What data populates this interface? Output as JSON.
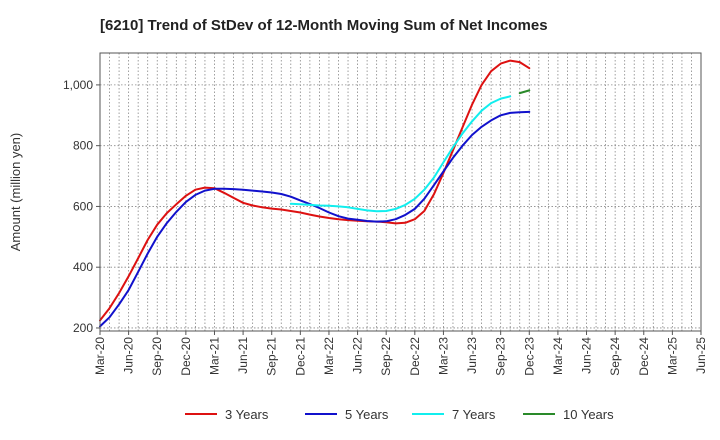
{
  "chart_data": {
    "type": "line",
    "title": "[6210]  Trend of StDev of 12-Month Moving Sum of Net Incomes",
    "ylabel": "Amount (million yen)",
    "xlabel": "",
    "ylim": [
      190,
      1105
    ],
    "yticks": [
      200,
      400,
      600,
      800,
      "1,000"
    ],
    "ytick_values": [
      200,
      400,
      600,
      800,
      1000
    ],
    "x_categories": [
      "Mar-20",
      "Jun-20",
      "Sep-20",
      "Dec-20",
      "Mar-21",
      "Jun-21",
      "Sep-21",
      "Dec-21",
      "Mar-22",
      "Jun-22",
      "Sep-22",
      "Dec-22",
      "Mar-23",
      "Jun-23",
      "Sep-23",
      "Dec-23",
      "Mar-24",
      "Jun-24",
      "Sep-24",
      "Dec-24",
      "Mar-25",
      "Jun-25"
    ],
    "grid": true,
    "legend_position": "bottom",
    "series": [
      {
        "name": "3 Years",
        "color": "#dd1111",
        "points": [
          [
            0,
            225
          ],
          [
            1,
            265
          ],
          [
            2,
            315
          ],
          [
            3,
            370
          ],
          [
            4,
            430
          ],
          [
            5,
            490
          ],
          [
            6,
            540
          ],
          [
            7,
            578
          ],
          [
            8,
            607
          ],
          [
            9,
            635
          ],
          [
            10,
            655
          ],
          [
            11,
            662
          ],
          [
            12,
            660
          ],
          [
            13,
            645
          ],
          [
            14,
            628
          ],
          [
            15,
            612
          ],
          [
            16,
            603
          ],
          [
            17,
            597
          ],
          [
            18,
            593
          ],
          [
            19,
            590
          ],
          [
            20,
            585
          ],
          [
            21,
            580
          ],
          [
            22,
            573
          ],
          [
            23,
            567
          ],
          [
            24,
            562
          ],
          [
            25,
            558
          ],
          [
            26,
            555
          ],
          [
            27,
            553
          ],
          [
            28,
            551
          ],
          [
            29,
            550
          ],
          [
            30,
            548
          ],
          [
            31,
            544
          ],
          [
            32,
            546
          ],
          [
            33,
            558
          ],
          [
            34,
            585
          ],
          [
            35,
            640
          ],
          [
            36,
            710
          ],
          [
            37,
            785
          ],
          [
            38,
            860
          ],
          [
            39,
            935
          ],
          [
            40,
            1000
          ],
          [
            41,
            1045
          ],
          [
            42,
            1070
          ],
          [
            43,
            1080
          ],
          [
            44,
            1075
          ],
          [
            45,
            1055
          ]
        ]
      },
      {
        "name": "5 Years",
        "color": "#1111cc",
        "points": [
          [
            0,
            205
          ],
          [
            1,
            235
          ],
          [
            2,
            278
          ],
          [
            3,
            325
          ],
          [
            4,
            385
          ],
          [
            5,
            445
          ],
          [
            6,
            500
          ],
          [
            7,
            545
          ],
          [
            8,
            582
          ],
          [
            9,
            615
          ],
          [
            10,
            638
          ],
          [
            11,
            652
          ],
          [
            12,
            658
          ],
          [
            13,
            658
          ],
          [
            14,
            657
          ],
          [
            15,
            655
          ],
          [
            16,
            652
          ],
          [
            17,
            649
          ],
          [
            18,
            646
          ],
          [
            19,
            641
          ],
          [
            20,
            632
          ],
          [
            21,
            620
          ],
          [
            22,
            608
          ],
          [
            23,
            595
          ],
          [
            24,
            580
          ],
          [
            25,
            568
          ],
          [
            26,
            560
          ],
          [
            27,
            556
          ],
          [
            28,
            552
          ],
          [
            29,
            550
          ],
          [
            30,
            551
          ],
          [
            31,
            558
          ],
          [
            32,
            572
          ],
          [
            33,
            592
          ],
          [
            34,
            625
          ],
          [
            35,
            670
          ],
          [
            36,
            715
          ],
          [
            37,
            760
          ],
          [
            38,
            800
          ],
          [
            39,
            835
          ],
          [
            40,
            862
          ],
          [
            41,
            883
          ],
          [
            42,
            900
          ],
          [
            43,
            908
          ],
          [
            44,
            910
          ],
          [
            45,
            911
          ]
        ]
      },
      {
        "name": "7 Years",
        "color": "#11eeee",
        "points": [
          [
            20,
            609
          ],
          [
            21,
            607
          ],
          [
            22,
            605
          ],
          [
            23,
            603
          ],
          [
            24,
            602
          ],
          [
            25,
            600
          ],
          [
            26,
            597
          ],
          [
            27,
            592
          ],
          [
            28,
            587
          ],
          [
            29,
            584
          ],
          [
            30,
            585
          ],
          [
            31,
            592
          ],
          [
            32,
            605
          ],
          [
            33,
            625
          ],
          [
            34,
            655
          ],
          [
            35,
            695
          ],
          [
            36,
            745
          ],
          [
            37,
            795
          ],
          [
            38,
            840
          ],
          [
            39,
            880
          ],
          [
            40,
            915
          ],
          [
            41,
            940
          ],
          [
            42,
            955
          ],
          [
            43,
            962
          ]
        ]
      },
      {
        "name": "10 Years",
        "color": "#2a8a2a",
        "points": [
          [
            44,
            973
          ],
          [
            45,
            982
          ]
        ]
      }
    ]
  }
}
